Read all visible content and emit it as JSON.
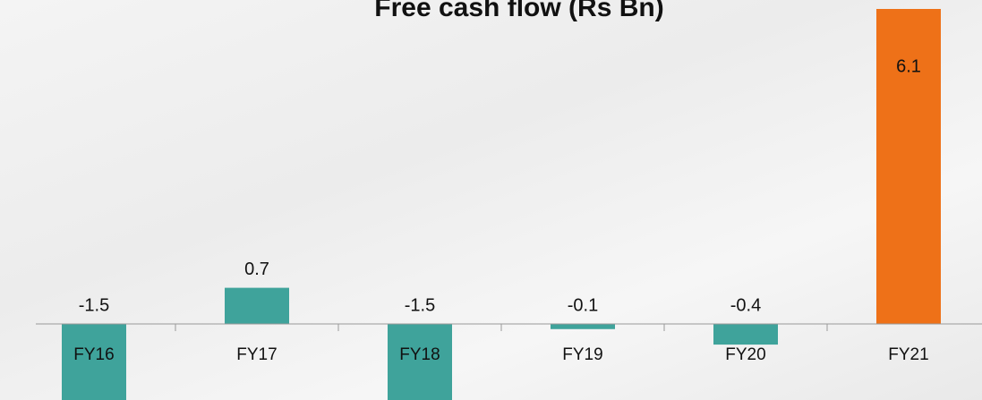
{
  "chart_data": {
    "type": "bar",
    "title": "Free cash flow (Rs Bn)",
    "categories": [
      "FY16",
      "FY17",
      "FY18",
      "FY19",
      "FY20",
      "FY21"
    ],
    "values": [
      -1.5,
      0.7,
      -1.5,
      -0.1,
      -0.4,
      6.1
    ],
    "colors": [
      "#3fa39b",
      "#3fa39b",
      "#3fa39b",
      "#3fa39b",
      "#3fa39b",
      "#ee7118"
    ]
  }
}
